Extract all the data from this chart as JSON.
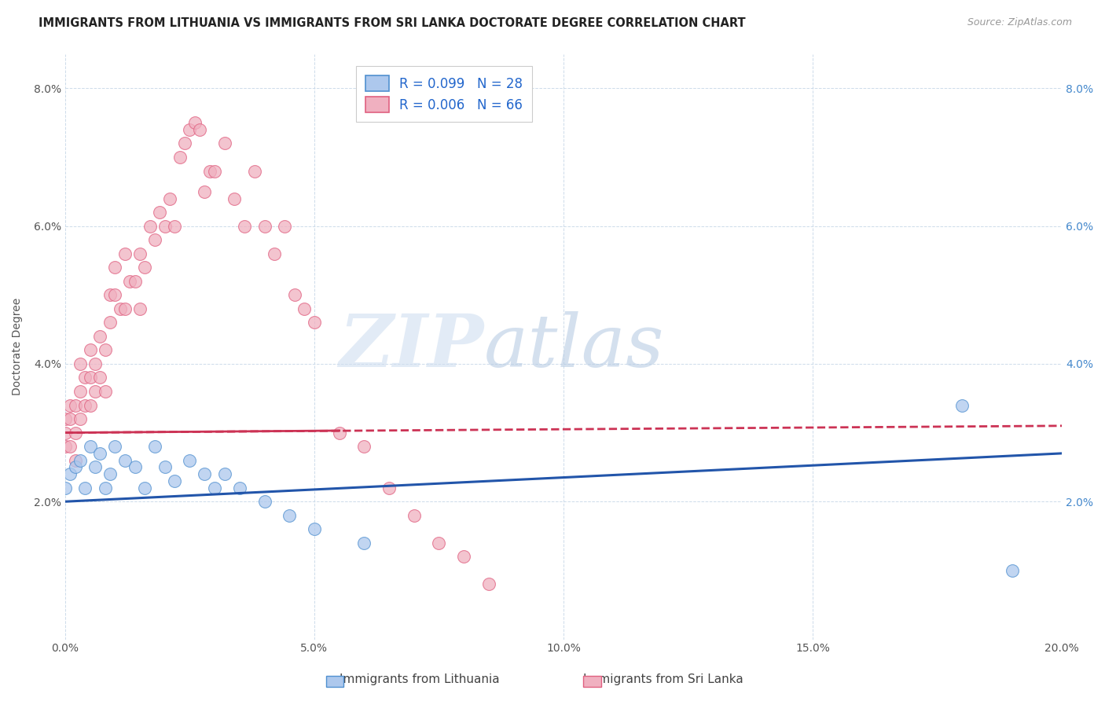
{
  "title": "IMMIGRANTS FROM LITHUANIA VS IMMIGRANTS FROM SRI LANKA DOCTORATE DEGREE CORRELATION CHART",
  "source_text": "Source: ZipAtlas.com",
  "ylabel": "Doctorate Degree",
  "xlim": [
    0.0,
    0.2
  ],
  "ylim": [
    0.0,
    0.085
  ],
  "xticks": [
    0.0,
    0.05,
    0.1,
    0.15,
    0.2
  ],
  "xtick_labels": [
    "0.0%",
    "5.0%",
    "10.0%",
    "15.0%",
    "20.0%"
  ],
  "yticks": [
    0.0,
    0.02,
    0.04,
    0.06,
    0.08
  ],
  "ytick_labels_left": [
    "",
    "2.0%",
    "4.0%",
    "6.0%",
    "8.0%"
  ],
  "ytick_labels_right": [
    "",
    "2.0%",
    "4.0%",
    "6.0%",
    "8.0%"
  ],
  "legend_r1": "R = 0.099",
  "legend_n1": "N = 28",
  "legend_r2": "R = 0.006",
  "legend_n2": "N = 66",
  "blue_fill": "#adc8ed",
  "blue_edge": "#5090d0",
  "pink_fill": "#f0b0c0",
  "pink_edge": "#e06080",
  "blue_line_color": "#2255aa",
  "pink_line_color": "#cc3355",
  "watermark_zip": "ZIP",
  "watermark_atlas": "atlas",
  "title_fontsize": 10.5,
  "axis_fontsize": 10,
  "tick_fontsize": 10,
  "blue_scatter_x": [
    0.0,
    0.001,
    0.002,
    0.003,
    0.004,
    0.005,
    0.006,
    0.007,
    0.008,
    0.009,
    0.01,
    0.012,
    0.014,
    0.016,
    0.018,
    0.02,
    0.022,
    0.025,
    0.028,
    0.03,
    0.032,
    0.035,
    0.04,
    0.045,
    0.05,
    0.06,
    0.18,
    0.19
  ],
  "blue_scatter_y": [
    0.022,
    0.024,
    0.025,
    0.026,
    0.022,
    0.028,
    0.025,
    0.027,
    0.022,
    0.024,
    0.028,
    0.026,
    0.025,
    0.022,
    0.028,
    0.025,
    0.023,
    0.026,
    0.024,
    0.022,
    0.024,
    0.022,
    0.02,
    0.018,
    0.016,
    0.014,
    0.034,
    0.01
  ],
  "pink_scatter_x": [
    0.0,
    0.0,
    0.0,
    0.001,
    0.001,
    0.001,
    0.002,
    0.002,
    0.002,
    0.003,
    0.003,
    0.003,
    0.004,
    0.004,
    0.005,
    0.005,
    0.005,
    0.006,
    0.006,
    0.007,
    0.007,
    0.008,
    0.008,
    0.009,
    0.009,
    0.01,
    0.01,
    0.011,
    0.012,
    0.012,
    0.013,
    0.014,
    0.015,
    0.015,
    0.016,
    0.017,
    0.018,
    0.019,
    0.02,
    0.021,
    0.022,
    0.023,
    0.024,
    0.025,
    0.026,
    0.027,
    0.028,
    0.029,
    0.03,
    0.032,
    0.034,
    0.036,
    0.038,
    0.04,
    0.042,
    0.044,
    0.046,
    0.048,
    0.05,
    0.055,
    0.06,
    0.065,
    0.07,
    0.075,
    0.08,
    0.085
  ],
  "pink_scatter_y": [
    0.028,
    0.03,
    0.032,
    0.028,
    0.032,
    0.034,
    0.026,
    0.03,
    0.034,
    0.032,
    0.036,
    0.04,
    0.034,
    0.038,
    0.038,
    0.034,
    0.042,
    0.036,
    0.04,
    0.038,
    0.044,
    0.036,
    0.042,
    0.046,
    0.05,
    0.05,
    0.054,
    0.048,
    0.048,
    0.056,
    0.052,
    0.052,
    0.048,
    0.056,
    0.054,
    0.06,
    0.058,
    0.062,
    0.06,
    0.064,
    0.06,
    0.07,
    0.072,
    0.074,
    0.075,
    0.074,
    0.065,
    0.068,
    0.068,
    0.072,
    0.064,
    0.06,
    0.068,
    0.06,
    0.056,
    0.06,
    0.05,
    0.048,
    0.046,
    0.03,
    0.028,
    0.022,
    0.018,
    0.014,
    0.012,
    0.008
  ]
}
